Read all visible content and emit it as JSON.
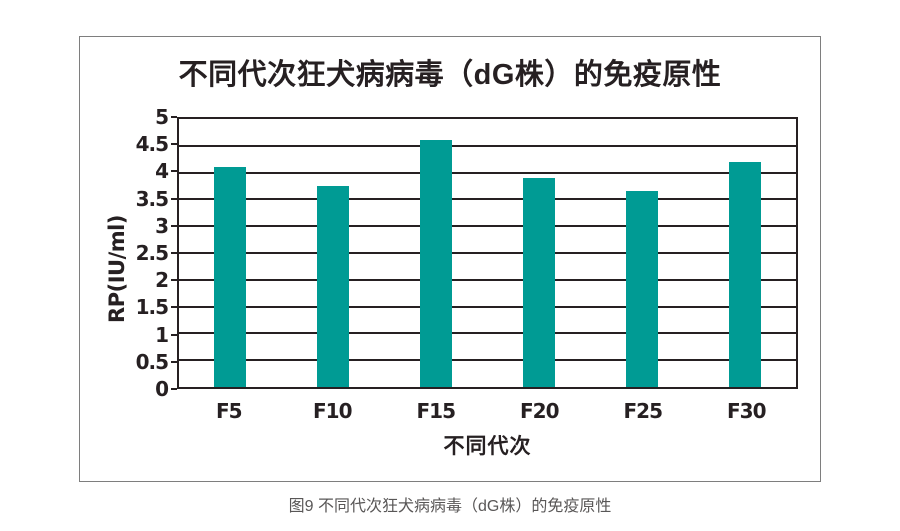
{
  "figure": {
    "caption": "图9 不同代次狂犬病病毒（dG株）的免疫原性"
  },
  "chart_data": {
    "type": "bar",
    "title": "不同代次狂犬病病毒（dG株）的免疫原性",
    "categories": [
      "F5",
      "F10",
      "F15",
      "F20",
      "F25",
      "F30"
    ],
    "values": [
      4.1,
      3.75,
      4.6,
      3.9,
      3.65,
      4.2
    ],
    "xlabel": "不同代次",
    "ylabel": "RP(IU/ml)",
    "ylim": [
      0,
      5
    ],
    "ytick_step": 0.5,
    "ytick_labels": [
      "0",
      "0.5",
      "1",
      "1.5",
      "2",
      "2.5",
      "3",
      "3.5",
      "4",
      "4.5",
      "5"
    ],
    "grid": true,
    "legend": "none",
    "colors": {
      "bar": "#009B94",
      "axis": "#262022",
      "caption_text": "#595757",
      "outer_border": "#7E7E7E"
    }
  }
}
